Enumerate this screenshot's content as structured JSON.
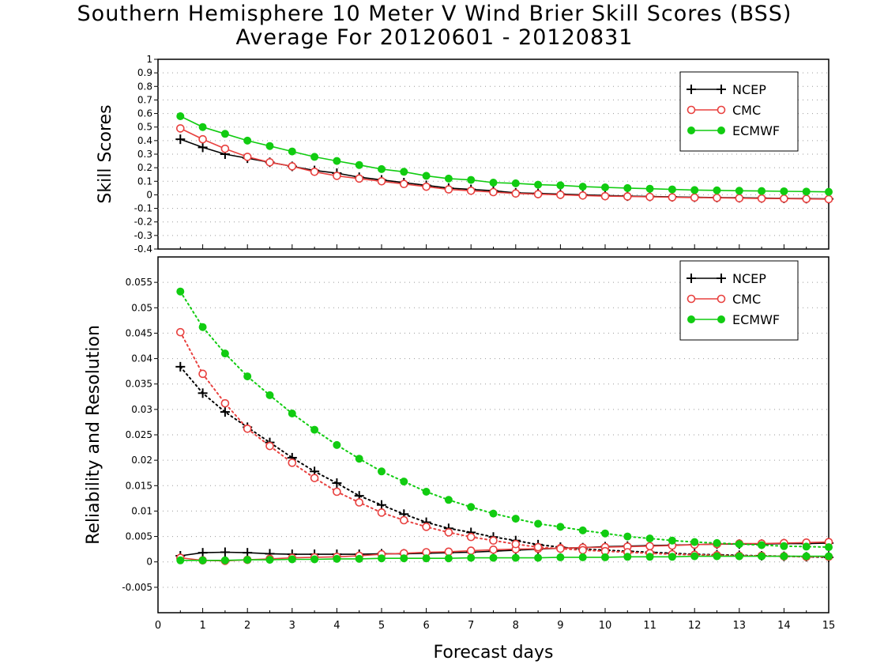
{
  "titles": {
    "line1": "Southern Hemisphere 10 Meter V Wind Brier Skill Scores (BSS)",
    "line2": "Average For 20120601 - 20120831"
  },
  "colors": {
    "NCEP": "#000000",
    "CMC": "#e8413f",
    "ECMWF": "#11cc11"
  },
  "chart_data": [
    {
      "type": "line",
      "ylabel": "Skill Scores",
      "xlabel": "",
      "xlim": [
        0,
        15
      ],
      "ylim": [
        -0.4,
        1
      ],
      "yticks": [
        "-0.4",
        "-0.3",
        "-0.2",
        "-0.1",
        "0",
        "0.1",
        "0.2",
        "0.3",
        "0.4",
        "0.5",
        "0.6",
        "0.7",
        "0.8",
        "0.9",
        "1"
      ],
      "legend_position": "top-right",
      "x": [
        0.5,
        1,
        1.5,
        2,
        2.5,
        3,
        3.5,
        4,
        4.5,
        5,
        5.5,
        6,
        6.5,
        7,
        7.5,
        8,
        8.5,
        9,
        9.5,
        10,
        10.5,
        11,
        11.5,
        12,
        12.5,
        13,
        13.5,
        14,
        14.5,
        15
      ],
      "series": [
        {
          "name": "NCEP",
          "marker": "plus",
          "style": "solid",
          "values": [
            0.41,
            0.35,
            0.3,
            0.27,
            0.24,
            0.21,
            0.18,
            0.16,
            0.13,
            0.11,
            0.09,
            0.07,
            0.05,
            0.04,
            0.03,
            0.015,
            0.01,
            0.005,
            0.0,
            -0.005,
            -0.01,
            -0.012,
            -0.015,
            -0.018,
            -0.02,
            -0.022,
            -0.024,
            -0.026,
            -0.028,
            -0.03
          ]
        },
        {
          "name": "CMC",
          "marker": "circle",
          "style": "solid",
          "values": [
            0.49,
            0.41,
            0.34,
            0.28,
            0.24,
            0.21,
            0.17,
            0.14,
            0.12,
            0.1,
            0.08,
            0.06,
            0.04,
            0.03,
            0.02,
            0.01,
            0.005,
            0.0,
            -0.005,
            -0.01,
            -0.012,
            -0.015,
            -0.018,
            -0.02,
            -0.022,
            -0.025,
            -0.027,
            -0.028,
            -0.03,
            -0.032
          ]
        },
        {
          "name": "ECMWF",
          "marker": "filled-circle",
          "style": "solid",
          "values": [
            0.58,
            0.5,
            0.45,
            0.4,
            0.36,
            0.32,
            0.28,
            0.25,
            0.22,
            0.19,
            0.17,
            0.14,
            0.12,
            0.11,
            0.09,
            0.085,
            0.075,
            0.07,
            0.06,
            0.055,
            0.05,
            0.045,
            0.04,
            0.035,
            0.033,
            0.03,
            0.028,
            0.026,
            0.024,
            0.022
          ]
        }
      ]
    },
    {
      "type": "line",
      "ylabel": "Reliability and Resolution",
      "xlabel": "Forecast days",
      "xlim": [
        0,
        15
      ],
      "ylim": [
        -0.01,
        0.06
      ],
      "yticks": [
        "-0.005",
        "0",
        "0.005",
        "0.01",
        "0.015",
        "0.02",
        "0.025",
        "0.03",
        "0.035",
        "0.04",
        "0.045",
        "0.05",
        "0.055"
      ],
      "xticks": [
        "0",
        "1",
        "2",
        "3",
        "4",
        "5",
        "6",
        "7",
        "8",
        "9",
        "10",
        "11",
        "12",
        "13",
        "14",
        "15"
      ],
      "legend_position": "top-right",
      "x": [
        0.5,
        1,
        1.5,
        2,
        2.5,
        3,
        3.5,
        4,
        4.5,
        5,
        5.5,
        6,
        6.5,
        7,
        7.5,
        8,
        8.5,
        9,
        9.5,
        10,
        10.5,
        11,
        11.5,
        12,
        12.5,
        13,
        13.5,
        14,
        14.5,
        15
      ],
      "series": [
        {
          "name": "NCEP",
          "marker": "plus",
          "style": "solid",
          "component": "reliability",
          "values": [
            0.0012,
            0.0018,
            0.0019,
            0.0018,
            0.0016,
            0.0015,
            0.0015,
            0.0015,
            0.0015,
            0.0016,
            0.0016,
            0.0017,
            0.0018,
            0.0019,
            0.0021,
            0.0023,
            0.0025,
            0.0027,
            0.0028,
            0.003,
            0.0031,
            0.0032,
            0.0033,
            0.0034,
            0.0035,
            0.0035,
            0.0035,
            0.0036,
            0.0036,
            0.0037
          ]
        },
        {
          "name": "NCEP",
          "marker": "plus",
          "style": "dotted",
          "component": "resolution",
          "values": [
            0.0384,
            0.0332,
            0.0295,
            0.0265,
            0.0235,
            0.0205,
            0.0178,
            0.0155,
            0.013,
            0.0112,
            0.0094,
            0.0078,
            0.0066,
            0.0058,
            0.0049,
            0.0042,
            0.0034,
            0.0029,
            0.0025,
            0.0023,
            0.0021,
            0.0019,
            0.0017,
            0.0015,
            0.0014,
            0.0013,
            0.0012,
            0.0011,
            0.001,
            0.0009
          ]
        },
        {
          "name": "CMC",
          "marker": "circle",
          "style": "solid",
          "component": "reliability",
          "values": [
            0.0008,
            0.0003,
            0.0002,
            0.0004,
            0.0006,
            0.0008,
            0.0009,
            0.001,
            0.0012,
            0.0015,
            0.0017,
            0.0019,
            0.002,
            0.0022,
            0.0024,
            0.0025,
            0.0026,
            0.0027,
            0.0028,
            0.0029,
            0.003,
            0.0031,
            0.0032,
            0.0034,
            0.0035,
            0.0036,
            0.0036,
            0.0037,
            0.0038,
            0.0039
          ]
        },
        {
          "name": "CMC",
          "marker": "circle",
          "style": "dotted",
          "component": "resolution",
          "values": [
            0.0452,
            0.037,
            0.0312,
            0.0262,
            0.0228,
            0.0195,
            0.0165,
            0.0138,
            0.0117,
            0.0097,
            0.0082,
            0.0069,
            0.0058,
            0.0049,
            0.0042,
            0.0035,
            0.0029,
            0.0026,
            0.0023,
            0.0021,
            0.0019,
            0.0017,
            0.0015,
            0.0014,
            0.0013,
            0.0012,
            0.0012,
            0.0011,
            0.001,
            0.001
          ]
        },
        {
          "name": "ECMWF",
          "marker": "filled-circle",
          "style": "solid",
          "component": "reliability",
          "values": [
            0.0003,
            0.0003,
            0.0003,
            0.0004,
            0.0004,
            0.0005,
            0.0005,
            0.0006,
            0.0006,
            0.0007,
            0.0007,
            0.0007,
            0.0007,
            0.0008,
            0.0008,
            0.0008,
            0.0008,
            0.0009,
            0.0009,
            0.0009,
            0.001,
            0.001,
            0.001,
            0.0011,
            0.0011,
            0.0011,
            0.0011,
            0.0011,
            0.0011,
            0.0011
          ]
        },
        {
          "name": "ECMWF",
          "marker": "filled-circle",
          "style": "dotted",
          "component": "resolution",
          "values": [
            0.0532,
            0.0462,
            0.041,
            0.0365,
            0.0328,
            0.0292,
            0.026,
            0.023,
            0.0203,
            0.0178,
            0.0158,
            0.0138,
            0.0122,
            0.0108,
            0.0095,
            0.0085,
            0.0075,
            0.0069,
            0.0062,
            0.0056,
            0.005,
            0.0046,
            0.0042,
            0.0039,
            0.0037,
            0.0035,
            0.0033,
            0.0031,
            0.003,
            0.0029
          ]
        }
      ]
    }
  ]
}
